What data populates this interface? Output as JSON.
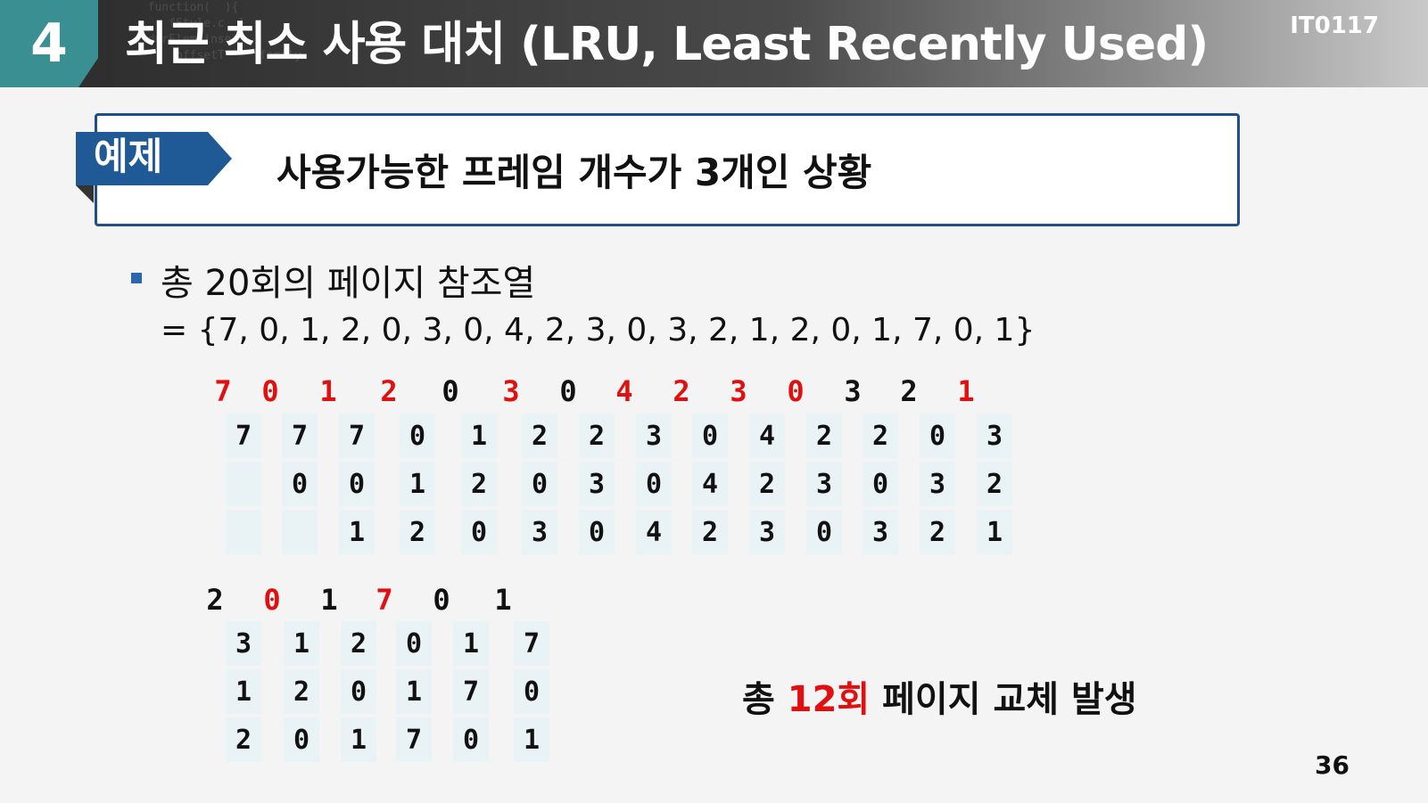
{
  "header": {
    "section_number": "4",
    "title": "최근 최소 사용 대치 (LRU, Least Recently Used)",
    "course_code": "IT0117"
  },
  "example": {
    "tag": "예제",
    "text": "사용가능한 프레임 개수가 3개인 상황"
  },
  "body": {
    "line1": "총 20회의 페이지 참조열",
    "line2": "= {7, 0, 1, 2, 0, 3, 0, 4, 2, 3, 0, 3, 2, 1, 2, 0, 1, 7, 0, 1}"
  },
  "row1": {
    "refs": [
      {
        "v": "7",
        "fault": true
      },
      {
        "v": "0",
        "fault": true
      },
      {
        "v": "1",
        "fault": true
      },
      {
        "v": "2",
        "fault": true
      },
      {
        "v": "0",
        "fault": false
      },
      {
        "v": "3",
        "fault": true
      },
      {
        "v": "0",
        "fault": false
      },
      {
        "v": "4",
        "fault": true
      },
      {
        "v": "2",
        "fault": true
      },
      {
        "v": "3",
        "fault": true
      },
      {
        "v": "0",
        "fault": true
      },
      {
        "v": "3",
        "fault": false
      },
      {
        "v": "2",
        "fault": false
      },
      {
        "v": "1",
        "fault": true
      }
    ],
    "frames": [
      [
        "7",
        "",
        ""
      ],
      [
        "7",
        "0",
        ""
      ],
      [
        "7",
        "0",
        "1"
      ],
      [
        "0",
        "1",
        "2"
      ],
      [
        "1",
        "2",
        "0"
      ],
      [
        "2",
        "0",
        "3"
      ],
      [
        "2",
        "3",
        "0"
      ],
      [
        "3",
        "0",
        "4"
      ],
      [
        "0",
        "4",
        "2"
      ],
      [
        "4",
        "2",
        "3"
      ],
      [
        "2",
        "3",
        "0"
      ],
      [
        "2",
        "0",
        "3"
      ],
      [
        "0",
        "3",
        "2"
      ],
      [
        "3",
        "2",
        "1"
      ]
    ]
  },
  "row2": {
    "refs": [
      {
        "v": "2",
        "fault": false
      },
      {
        "v": "0",
        "fault": true
      },
      {
        "v": "1",
        "fault": false
      },
      {
        "v": "7",
        "fault": true
      },
      {
        "v": "0",
        "fault": false
      },
      {
        "v": "1",
        "fault": false
      }
    ],
    "frames": [
      [
        "3",
        "1",
        "2"
      ],
      [
        "1",
        "2",
        "0"
      ],
      [
        "2",
        "0",
        "1"
      ],
      [
        "0",
        "1",
        "7"
      ],
      [
        "1",
        "7",
        "0"
      ],
      [
        "7",
        "0",
        "1"
      ]
    ]
  },
  "summary": {
    "prefix": "총 ",
    "count": "12회",
    "suffix": " 페이지 교체 발생"
  },
  "page_number": "36",
  "colors": {
    "fault": "#e01010",
    "teal_badge": "#3a8f92",
    "tag_blue": "#1f5a96",
    "box_border": "#1e4f8c"
  }
}
